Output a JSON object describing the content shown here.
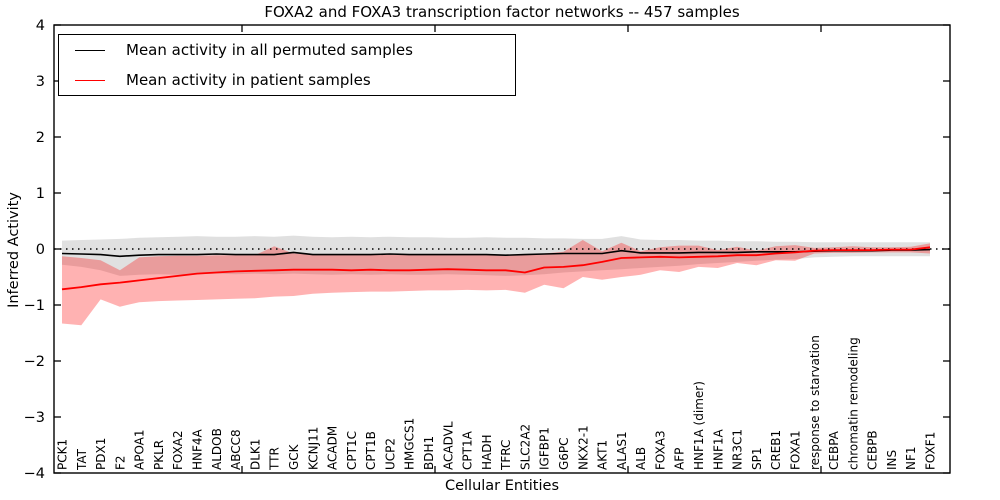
{
  "title": "FOXA2 and FOXA3 transcription factor networks -- 457 samples",
  "axes": {
    "ylabel": "Inferred Activity",
    "xlabel": "Cellular Entities",
    "yticks": [
      4,
      3,
      2,
      1,
      0,
      -1,
      -2,
      -3,
      -4
    ],
    "ylim": [
      -4,
      4
    ],
    "zero_line_style": "dotted"
  },
  "legend": {
    "entries": [
      {
        "label": "Mean activity in all permuted samples",
        "color": "#000000"
      },
      {
        "label": "Mean activity in patient samples",
        "color": "#ff0000"
      }
    ],
    "position": "upper-left"
  },
  "colors": {
    "permuted_line": "#000000",
    "patient_line": "#ff0000",
    "permuted_band": "rgba(0,0,0,0.12)",
    "patient_band": "rgba(255,0,0,0.30)",
    "zero_line": "#000000",
    "frame": "#000000",
    "background": "#ffffff"
  },
  "chart_data": {
    "type": "line",
    "title": "FOXA2 and FOXA3 transcription factor networks -- 457 samples",
    "xlabel": "Cellular Entities",
    "ylabel": "Inferred Activity",
    "ylim": [
      -4,
      4
    ],
    "grid": false,
    "legend_position": "upper-left",
    "zero_line": true,
    "categories": [
      "PCK1",
      "TAT",
      "PDX1",
      "F2",
      "APOA1",
      "PKLR",
      "FOXA2",
      "HNF4A",
      "ALDOB",
      "ABCC8",
      "DLK1",
      "TTR",
      "GCK",
      "KCNJ11",
      "ACADM",
      "CPT1C",
      "CPT1B",
      "UCP2",
      "HMGCS1",
      "BDH1",
      "ACADVL",
      "CPT1A",
      "HADH",
      "TFRC",
      "SLC2A2",
      "IGFBP1",
      "G6PC",
      "NKX2-1",
      "AKT1",
      "ALAS1",
      "ALB",
      "FOXA3",
      "AFP",
      "HNF1A (dimer)",
      "HNF1A",
      "NR3C1",
      "SP1",
      "CREB1",
      "FOXA1",
      "response to starvation",
      "CEBPA",
      "chromatin remodeling",
      "CEBPB",
      "INS",
      "NF1",
      "FOXF1"
    ],
    "series": [
      {
        "name": "Mean activity in all permuted samples",
        "color": "#000000",
        "values": [
          -0.08,
          -0.09,
          -0.1,
          -0.13,
          -0.11,
          -0.1,
          -0.1,
          -0.1,
          -0.09,
          -0.1,
          -0.1,
          -0.1,
          -0.06,
          -0.1,
          -0.1,
          -0.1,
          -0.1,
          -0.09,
          -0.1,
          -0.1,
          -0.1,
          -0.1,
          -0.1,
          -0.11,
          -0.1,
          -0.09,
          -0.08,
          -0.08,
          -0.08,
          -0.03,
          -0.07,
          -0.07,
          -0.07,
          -0.06,
          -0.06,
          -0.06,
          -0.05,
          -0.05,
          -0.05,
          -0.04,
          -0.03,
          -0.03,
          -0.03,
          -0.02,
          -0.02,
          -0.01
        ]
      },
      {
        "name": "Mean activity in patient samples",
        "color": "#ff0000",
        "values": [
          -0.72,
          -0.68,
          -0.63,
          -0.6,
          -0.56,
          -0.52,
          -0.48,
          -0.44,
          -0.42,
          -0.4,
          -0.39,
          -0.38,
          -0.37,
          -0.37,
          -0.37,
          -0.38,
          -0.37,
          -0.38,
          -0.38,
          -0.37,
          -0.36,
          -0.37,
          -0.38,
          -0.38,
          -0.42,
          -0.33,
          -0.32,
          -0.29,
          -0.23,
          -0.16,
          -0.15,
          -0.14,
          -0.15,
          -0.14,
          -0.13,
          -0.11,
          -0.11,
          -0.08,
          -0.06,
          -0.03,
          -0.02,
          -0.02,
          -0.02,
          -0.01,
          -0.01,
          0.03
        ]
      }
    ],
    "bands": [
      {
        "name": "permuted samples range",
        "color": "rgba(0,0,0,0.12)",
        "upper": [
          0.15,
          0.16,
          0.17,
          0.18,
          0.2,
          0.21,
          0.22,
          0.23,
          0.22,
          0.22,
          0.23,
          0.22,
          0.24,
          0.22,
          0.21,
          0.22,
          0.21,
          0.22,
          0.21,
          0.21,
          0.2,
          0.2,
          0.21,
          0.2,
          0.2,
          0.19,
          0.19,
          0.18,
          0.18,
          0.23,
          0.17,
          0.16,
          0.16,
          0.15,
          0.15,
          0.14,
          0.14,
          0.13,
          0.13,
          0.12,
          0.12,
          0.12,
          0.12,
          0.12,
          0.12,
          0.12
        ],
        "lower": [
          -0.28,
          -0.32,
          -0.38,
          -0.48,
          -0.46,
          -0.45,
          -0.46,
          -0.45,
          -0.44,
          -0.45,
          -0.44,
          -0.45,
          -0.44,
          -0.45,
          -0.46,
          -0.45,
          -0.46,
          -0.45,
          -0.46,
          -0.46,
          -0.45,
          -0.46,
          -0.47,
          -0.48,
          -0.47,
          -0.45,
          -0.42,
          -0.4,
          -0.38,
          -0.36,
          -0.34,
          -0.32,
          -0.3,
          -0.27,
          -0.25,
          -0.23,
          -0.21,
          -0.19,
          -0.18,
          -0.15,
          -0.14,
          -0.13,
          -0.13,
          -0.13,
          -0.13,
          -0.13
        ]
      },
      {
        "name": "patient samples range",
        "color": "rgba(255,0,0,0.30)",
        "upper": [
          -0.13,
          -0.16,
          -0.2,
          -0.38,
          -0.15,
          -0.13,
          -0.12,
          -0.12,
          -0.11,
          -0.11,
          -0.11,
          0.05,
          -0.08,
          -0.1,
          -0.1,
          -0.1,
          -0.1,
          -0.1,
          -0.1,
          -0.1,
          -0.1,
          -0.1,
          -0.1,
          -0.1,
          -0.1,
          -0.08,
          -0.05,
          0.16,
          -0.04,
          0.11,
          -0.04,
          0.03,
          0.06,
          0.06,
          -0.02,
          0.04,
          -0.03,
          0.05,
          0.07,
          0.02,
          0.03,
          0.05,
          0.03,
          0.03,
          0.04,
          0.1
        ],
        "lower": [
          -1.33,
          -1.36,
          -0.9,
          -1.03,
          -0.95,
          -0.93,
          -0.92,
          -0.91,
          -0.9,
          -0.89,
          -0.88,
          -0.85,
          -0.84,
          -0.8,
          -0.78,
          -0.77,
          -0.76,
          -0.76,
          -0.75,
          -0.74,
          -0.74,
          -0.73,
          -0.74,
          -0.73,
          -0.78,
          -0.64,
          -0.7,
          -0.5,
          -0.55,
          -0.5,
          -0.46,
          -0.38,
          -0.41,
          -0.32,
          -0.34,
          -0.25,
          -0.29,
          -0.2,
          -0.21,
          -0.08,
          -0.07,
          -0.07,
          -0.06,
          -0.06,
          -0.06,
          -0.08
        ]
      }
    ]
  }
}
